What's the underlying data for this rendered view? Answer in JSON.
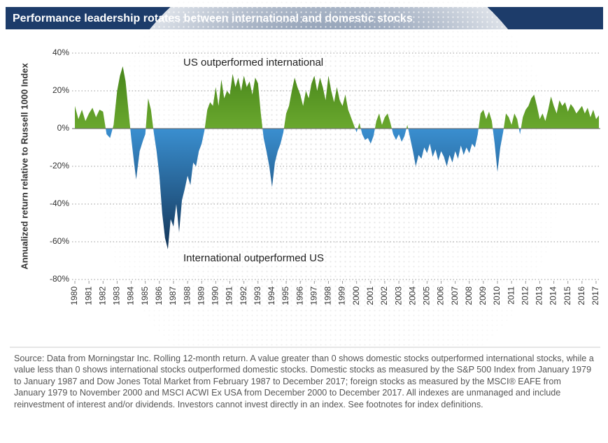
{
  "chart_data": {
    "type": "area",
    "title": "Performance leadership rotates between international and domestic stocks",
    "y_label": "Annualized return relative to Russell 1000 Index",
    "annotations": [
      "US outperformed international",
      "International outperformed US"
    ],
    "source": "Source: Data from Morningstar Inc. Rolling 12-month return. A value greater than 0 shows domestic stocks outperformed international stocks, while a value less than 0 shows international stocks outperformed domestic stocks. Domestic stocks as measured by the S&P 500 Index from January 1979 to January 1987 and Dow Jones Total Market from February 1987 to December 2017; foreign stocks as measured by the MSCI® EAFE from January 1979 to November 2000 and MSCI ACWI Ex USA from December 2000 to December 2017. All indexes are unmanaged and include reinvestment of interest and/or dividends. Investors cannot invest directly in an index. See footnotes for index definitions.",
    "positive_color": "#6aa82e",
    "negative_color": "#3a8fd0",
    "grid": true,
    "xlim": [
      1979.8,
      2017.3
    ],
    "ylim": [
      -80,
      40
    ],
    "xticks": [
      1980,
      1981,
      1982,
      1983,
      1984,
      1985,
      1986,
      1987,
      1988,
      1989,
      1990,
      1991,
      1992,
      1993,
      1994,
      1995,
      1996,
      1997,
      1998,
      1999,
      2000,
      2001,
      2002,
      2003,
      2004,
      2005,
      2006,
      2007,
      2008,
      2009,
      2010,
      2011,
      2012,
      2013,
      2014,
      2015,
      2016,
      2017
    ],
    "yticks": [
      {
        "value": -80,
        "label": "-80%"
      },
      {
        "value": -60,
        "label": "-60%"
      },
      {
        "value": -40,
        "label": "-40%"
      },
      {
        "value": -20,
        "label": "-20%"
      },
      {
        "value": 0,
        "label": "0%"
      },
      {
        "value": 20,
        "label": "20%"
      },
      {
        "value": 40,
        "label": "40%"
      }
    ],
    "x": [
      1980,
      1980.25,
      1980.5,
      1980.75,
      1981,
      1981.25,
      1981.5,
      1981.75,
      1982,
      1982.25,
      1982.5,
      1982.75,
      1983,
      1983.2,
      1983.4,
      1983.6,
      1983.8,
      1984,
      1984.2,
      1984.35,
      1984.6,
      1984.85,
      1985,
      1985.2,
      1985.4,
      1985.6,
      1985.8,
      1986,
      1986.2,
      1986.4,
      1986.6,
      1986.8,
      1987,
      1987.2,
      1987.4,
      1987.6,
      1987.8,
      1988,
      1988.2,
      1988.4,
      1988.6,
      1988.8,
      1989,
      1989.2,
      1989.4,
      1989.6,
      1989.8,
      1990,
      1990.2,
      1990.4,
      1990.6,
      1990.8,
      1991,
      1991.2,
      1991.4,
      1991.6,
      1991.8,
      1992,
      1992.2,
      1992.4,
      1992.6,
      1992.8,
      1993,
      1993.2,
      1993.4,
      1993.6,
      1993.8,
      1994,
      1994.2,
      1994.4,
      1994.6,
      1994.8,
      1995,
      1995.2,
      1995.4,
      1995.6,
      1995.8,
      1996,
      1996.2,
      1996.4,
      1996.6,
      1996.8,
      1997,
      1997.2,
      1997.4,
      1997.6,
      1997.8,
      1998,
      1998.2,
      1998.4,
      1998.6,
      1998.8,
      1999,
      1999.2,
      1999.4,
      1999.6,
      1999.8,
      2000,
      2000.2,
      2000.4,
      2000.6,
      2000.8,
      2001,
      2001.2,
      2001.4,
      2001.6,
      2001.8,
      2002,
      2002.2,
      2002.4,
      2002.6,
      2002.8,
      2003,
      2003.2,
      2003.4,
      2003.6,
      2003.8,
      2004,
      2004.2,
      2004.4,
      2004.6,
      2004.8,
      2005,
      2005.2,
      2005.4,
      2005.6,
      2005.8,
      2006,
      2006.2,
      2006.4,
      2006.6,
      2006.8,
      2007,
      2007.2,
      2007.4,
      2007.6,
      2007.8,
      2008,
      2008.2,
      2008.4,
      2008.6,
      2008.8,
      2009,
      2009.2,
      2009.4,
      2009.6,
      2009.8,
      2010,
      2010.2,
      2010.4,
      2010.6,
      2010.8,
      2011,
      2011.2,
      2011.4,
      2011.6,
      2011.8,
      2012,
      2012.2,
      2012.4,
      2012.6,
      2012.8,
      2013,
      2013.2,
      2013.4,
      2013.6,
      2013.8,
      2014,
      2014.2,
      2014.4,
      2014.6,
      2014.8,
      2015,
      2015.2,
      2015.4,
      2015.6,
      2015.8,
      2016,
      2016.2,
      2016.4,
      2016.6,
      2016.8,
      2017,
      2017.2
    ],
    "values": [
      12,
      5,
      10,
      4,
      8,
      11,
      6,
      10,
      9,
      -3,
      -5,
      2,
      20,
      28,
      33,
      25,
      10,
      -5,
      -18,
      -27,
      -12,
      -6,
      -3,
      16,
      10,
      -2,
      -12,
      -25,
      -45,
      -58,
      -64,
      -48,
      -52,
      -40,
      -55,
      -38,
      -32,
      -25,
      -30,
      -18,
      -20,
      -12,
      -8,
      -1,
      10,
      14,
      12,
      22,
      12,
      26,
      16,
      20,
      18,
      29,
      22,
      27,
      20,
      28,
      22,
      25,
      18,
      27,
      24,
      8,
      -5,
      -12,
      -20,
      -31,
      -18,
      -12,
      -8,
      -2,
      8,
      12,
      20,
      27,
      22,
      18,
      12,
      20,
      16,
      24,
      28,
      20,
      27,
      22,
      15,
      28,
      20,
      14,
      22,
      15,
      12,
      18,
      10,
      6,
      2,
      -2,
      3,
      -3,
      -6,
      -5,
      -8,
      -4,
      4,
      8,
      2,
      6,
      8,
      3,
      -3,
      -6,
      -3,
      -7,
      -4,
      2,
      -5,
      -12,
      -20,
      -14,
      -16,
      -10,
      -13,
      -8,
      -15,
      -11,
      -17,
      -12,
      -15,
      -20,
      -14,
      -18,
      -12,
      -16,
      -9,
      -14,
      -10,
      -13,
      -8,
      -10,
      -3,
      8,
      10,
      5,
      9,
      4,
      -8,
      -23,
      -10,
      -2,
      8,
      6,
      2,
      8,
      5,
      -3,
      6,
      10,
      12,
      16,
      18,
      12,
      5,
      8,
      4,
      10,
      17,
      12,
      8,
      15,
      12,
      14,
      9,
      13,
      11,
      8,
      10,
      12,
      8,
      11,
      6,
      10,
      5,
      7
    ]
  }
}
